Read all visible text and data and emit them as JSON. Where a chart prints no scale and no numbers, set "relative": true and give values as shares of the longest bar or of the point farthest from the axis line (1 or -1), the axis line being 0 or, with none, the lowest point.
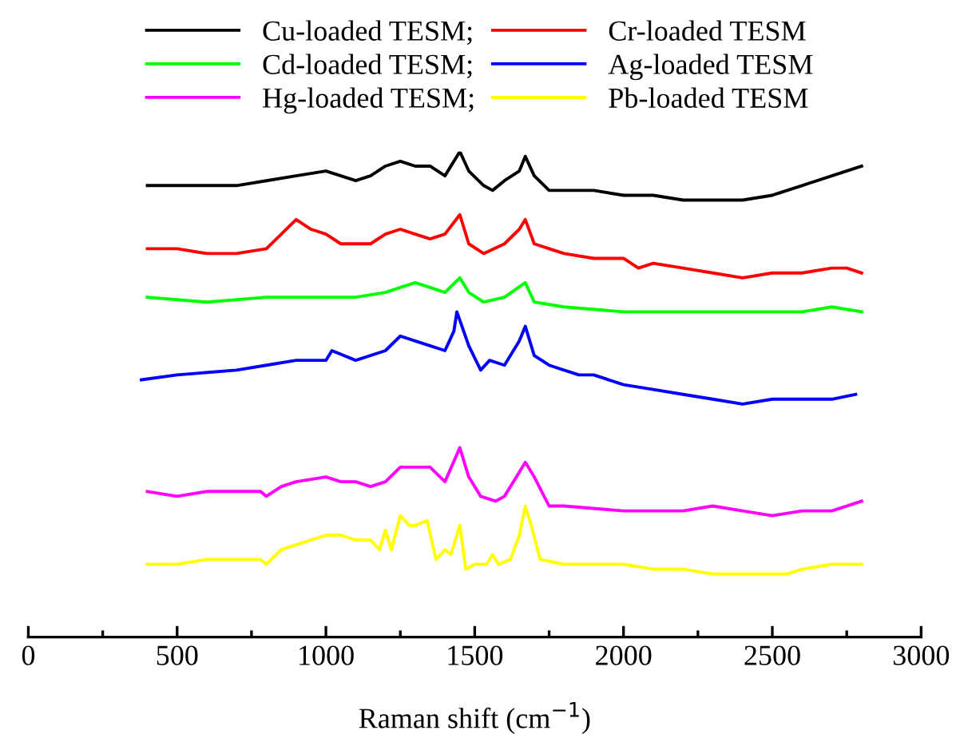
{
  "chart_data": {
    "type": "line",
    "relative": true,
    "xlabel": "Raman shift (cm$^{−1}$)",
    "xlim": [
      0,
      3000
    ],
    "xticks": [
      0,
      {
        "value": 250,
        "label": null
      },
      500,
      {
        "value": 750,
        "label": null
      },
      1000,
      {
        "value": 1250,
        "label": null
      },
      1500,
      {
        "value": 1750,
        "label": null
      },
      2000,
      {
        "value": 2250,
        "label": null
      },
      2500,
      {
        "value": 2750,
        "label": null
      },
      3000
    ],
    "legend": "top",
    "grid": false,
    "marker": "none",
    "line_style": "solid",
    "series": [
      {
        "name": "Cu-loaded TESM;",
        "color": "#000000",
        "x": [
          400,
          500,
          600,
          700,
          800,
          900,
          1000,
          1050,
          1100,
          1150,
          1200,
          1250,
          1300,
          1350,
          1400,
          1450,
          1480,
          1530,
          1560,
          1600,
          1650,
          1670,
          1700,
          1750,
          1800,
          1900,
          2000,
          2100,
          2200,
          2300,
          2400,
          2500,
          2600,
          2700,
          2800
        ],
        "values": [
          0.93,
          0.93,
          0.93,
          0.93,
          0.94,
          0.95,
          0.96,
          0.95,
          0.94,
          0.95,
          0.97,
          0.98,
          0.97,
          0.97,
          0.95,
          1.0,
          0.96,
          0.93,
          0.92,
          0.94,
          0.96,
          0.99,
          0.95,
          0.92,
          0.92,
          0.92,
          0.91,
          0.91,
          0.9,
          0.9,
          0.9,
          0.91,
          0.93,
          0.95,
          0.97
        ]
      },
      {
        "name": "Cr-loaded TESM",
        "color": "#ff0000",
        "x": [
          400,
          500,
          600,
          700,
          800,
          850,
          900,
          950,
          1000,
          1050,
          1100,
          1150,
          1200,
          1250,
          1300,
          1350,
          1400,
          1450,
          1480,
          1530,
          1600,
          1650,
          1670,
          1700,
          1750,
          1800,
          1900,
          2000,
          2050,
          2100,
          2200,
          2300,
          2400,
          2500,
          2600,
          2700,
          2750,
          2800
        ],
        "values": [
          0.8,
          0.8,
          0.79,
          0.79,
          0.8,
          0.83,
          0.86,
          0.84,
          0.83,
          0.81,
          0.81,
          0.81,
          0.83,
          0.84,
          0.83,
          0.82,
          0.83,
          0.87,
          0.81,
          0.79,
          0.81,
          0.84,
          0.86,
          0.81,
          0.8,
          0.79,
          0.78,
          0.78,
          0.76,
          0.77,
          0.76,
          0.75,
          0.74,
          0.75,
          0.75,
          0.76,
          0.76,
          0.75
        ]
      },
      {
        "name": "Cd-loaded TESM;",
        "color": "#00ff00",
        "x": [
          400,
          600,
          800,
          1000,
          1100,
          1200,
          1250,
          1300,
          1350,
          1400,
          1450,
          1480,
          1530,
          1600,
          1670,
          1700,
          1800,
          2000,
          2100,
          2200,
          2300,
          2400,
          2500,
          2600,
          2700,
          2800
        ],
        "values": [
          0.7,
          0.69,
          0.7,
          0.7,
          0.7,
          0.71,
          0.72,
          0.73,
          0.72,
          0.71,
          0.74,
          0.71,
          0.69,
          0.7,
          0.73,
          0.69,
          0.68,
          0.67,
          0.67,
          0.67,
          0.67,
          0.67,
          0.67,
          0.67,
          0.68,
          0.67
        ]
      },
      {
        "name": "Ag-loaded TESM",
        "color": "#0000ff",
        "x": [
          380,
          500,
          700,
          800,
          900,
          1000,
          1020,
          1100,
          1200,
          1250,
          1300,
          1350,
          1400,
          1430,
          1440,
          1480,
          1520,
          1550,
          1600,
          1650,
          1670,
          1700,
          1750,
          1800,
          1850,
          1900,
          2000,
          2100,
          2200,
          2300,
          2400,
          2500,
          2600,
          2700,
          2780
        ],
        "values": [
          0.53,
          0.54,
          0.55,
          0.56,
          0.57,
          0.57,
          0.59,
          0.57,
          0.59,
          0.62,
          0.61,
          0.6,
          0.59,
          0.63,
          0.67,
          0.6,
          0.55,
          0.57,
          0.56,
          0.61,
          0.64,
          0.58,
          0.56,
          0.55,
          0.54,
          0.54,
          0.52,
          0.51,
          0.5,
          0.49,
          0.48,
          0.49,
          0.49,
          0.49,
          0.5
        ]
      },
      {
        "name": "Hg-loaded TESM;",
        "color": "#ff00ff",
        "x": [
          400,
          500,
          600,
          700,
          780,
          800,
          850,
          900,
          1000,
          1050,
          1100,
          1150,
          1200,
          1250,
          1300,
          1350,
          1400,
          1450,
          1480,
          1520,
          1570,
          1600,
          1650,
          1670,
          1700,
          1750,
          1800,
          2000,
          2100,
          2200,
          2300,
          2400,
          2500,
          2600,
          2700,
          2800
        ],
        "values": [
          0.3,
          0.29,
          0.3,
          0.3,
          0.3,
          0.29,
          0.31,
          0.32,
          0.33,
          0.32,
          0.32,
          0.31,
          0.32,
          0.35,
          0.35,
          0.35,
          0.32,
          0.39,
          0.33,
          0.29,
          0.28,
          0.29,
          0.34,
          0.36,
          0.33,
          0.27,
          0.27,
          0.26,
          0.26,
          0.26,
          0.27,
          0.26,
          0.25,
          0.26,
          0.26,
          0.28
        ]
      },
      {
        "name": "Pb-loaded TESM",
        "color": "#ffff00",
        "x": [
          400,
          500,
          600,
          700,
          780,
          800,
          850,
          900,
          1000,
          1050,
          1100,
          1150,
          1180,
          1200,
          1220,
          1250,
          1280,
          1300,
          1340,
          1370,
          1400,
          1420,
          1450,
          1470,
          1500,
          1540,
          1560,
          1580,
          1620,
          1650,
          1670,
          1690,
          1720,
          1800,
          1900,
          2000,
          2100,
          2200,
          2300,
          2400,
          2500,
          2550,
          2600,
          2700,
          2800
        ],
        "values": [
          0.15,
          0.15,
          0.16,
          0.16,
          0.16,
          0.15,
          0.18,
          0.19,
          0.21,
          0.21,
          0.2,
          0.2,
          0.18,
          0.22,
          0.18,
          0.25,
          0.23,
          0.23,
          0.24,
          0.16,
          0.18,
          0.17,
          0.23,
          0.14,
          0.15,
          0.15,
          0.17,
          0.15,
          0.16,
          0.21,
          0.27,
          0.23,
          0.16,
          0.15,
          0.15,
          0.15,
          0.14,
          0.14,
          0.13,
          0.13,
          0.13,
          0.13,
          0.14,
          0.15,
          0.15
        ]
      }
    ]
  }
}
